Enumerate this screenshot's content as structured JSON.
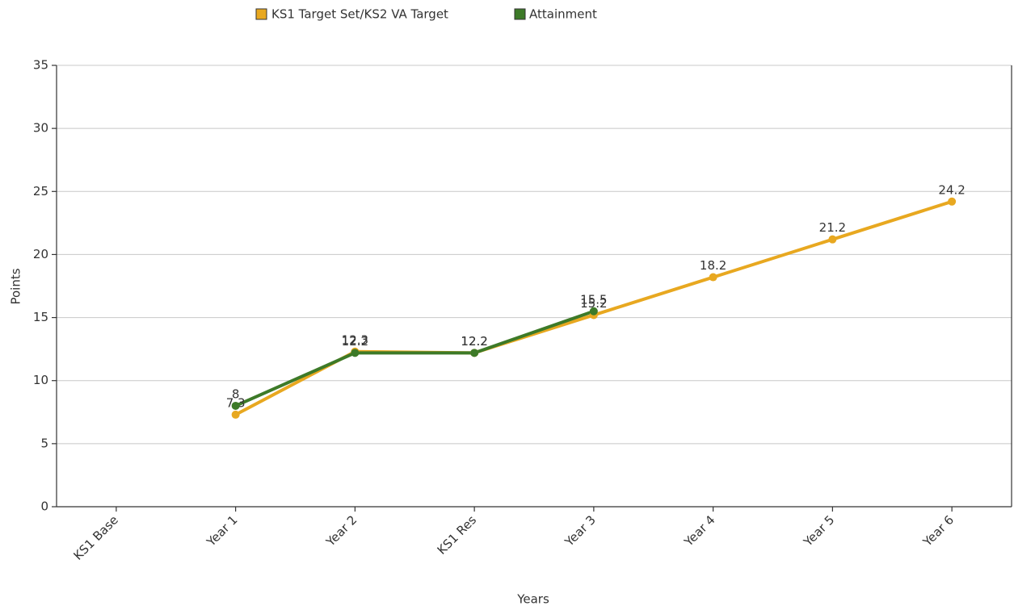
{
  "chart_data": {
    "type": "line",
    "x_label": "Years",
    "y_label": "Points",
    "categories": [
      "KS1 Base",
      "Year 1",
      "Year 2",
      "KS1 Res",
      "Year 3",
      "Year 4",
      "Year 5",
      "Year 6"
    ],
    "series": [
      {
        "name": "KS1 Target Set/KS2 VA Target",
        "color": "#e8a820",
        "values": [
          null,
          7.3,
          12.3,
          12.2,
          15.2,
          18.2,
          21.2,
          24.2
        ]
      },
      {
        "name": "Attainment",
        "color": "#3d7a28",
        "values": [
          null,
          8,
          12.2,
          12.2,
          15.5,
          null,
          null,
          null
        ]
      }
    ],
    "ylim": [
      0,
      35
    ],
    "yticks": [
      0,
      5,
      10,
      15,
      20,
      25,
      30,
      35
    ],
    "grid": true,
    "legend": "top"
  }
}
